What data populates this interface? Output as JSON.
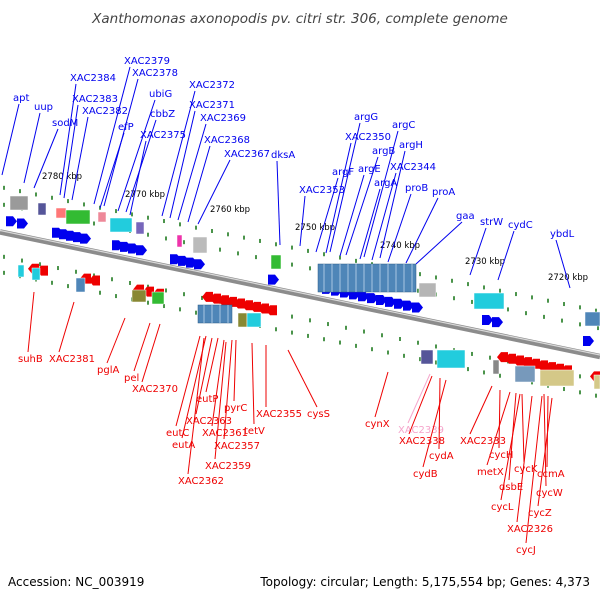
{
  "title": "Xanthomonas axonopodis pv. citri str. 306, complete genome",
  "footer": {
    "accession": "Accession: NC_003919",
    "topology": "Topology: circular; Length: 5,175,554 bp; Genes: 4,373"
  },
  "colors": {
    "forward_strand": "#0000ee",
    "reverse_strand": "#ee0000",
    "highlighted_label": "#f5a6cc",
    "tick_mark": "#1e7a1e",
    "backbone": "#8c8c8c"
  },
  "kbp_markers": [
    "2780 kbp",
    "2770 kbp",
    "2760 kbp",
    "2750 kbp",
    "2740 kbp",
    "2730 kbp",
    "2720 kbp"
  ],
  "forward_labels": [
    "apt",
    "uup",
    "sodM",
    "XAC2384",
    "XAC2383",
    "XAC2382",
    "XAC2379",
    "XAC2378",
    "efP",
    "ubiG",
    "cbbZ",
    "XAC2375",
    "XAC2372",
    "XAC2371",
    "XAC2369",
    "XAC2368",
    "XAC2367",
    "dksA",
    "XAC2353",
    "argG",
    "XAC2350",
    "argF",
    "argB",
    "argC",
    "argE",
    "argH",
    "argA",
    "XAC2344",
    "proB",
    "proA",
    "gaa",
    "strW",
    "cydC",
    "ybdL"
  ],
  "reverse_labels": [
    "suhB",
    "XAC2381",
    "pglA",
    "pel",
    "XAC2370",
    "eutP",
    "XAC2363",
    "pyrC",
    "eutC",
    "XAC2361",
    "eutA",
    "XAC2357",
    "XAC2359",
    "XAC2362",
    "tetV",
    "XAC2355",
    "cysS",
    "cynX",
    "XAC2339",
    "XAC2338",
    "cydA",
    "cydB",
    "XAC2333",
    "cycH",
    "metX",
    "cycK",
    "ccmA",
    "dsbE",
    "cycW",
    "cycL",
    "cycZ",
    "XAC2326",
    "cycJ"
  ],
  "highlighted_gene": "XAC2339"
}
